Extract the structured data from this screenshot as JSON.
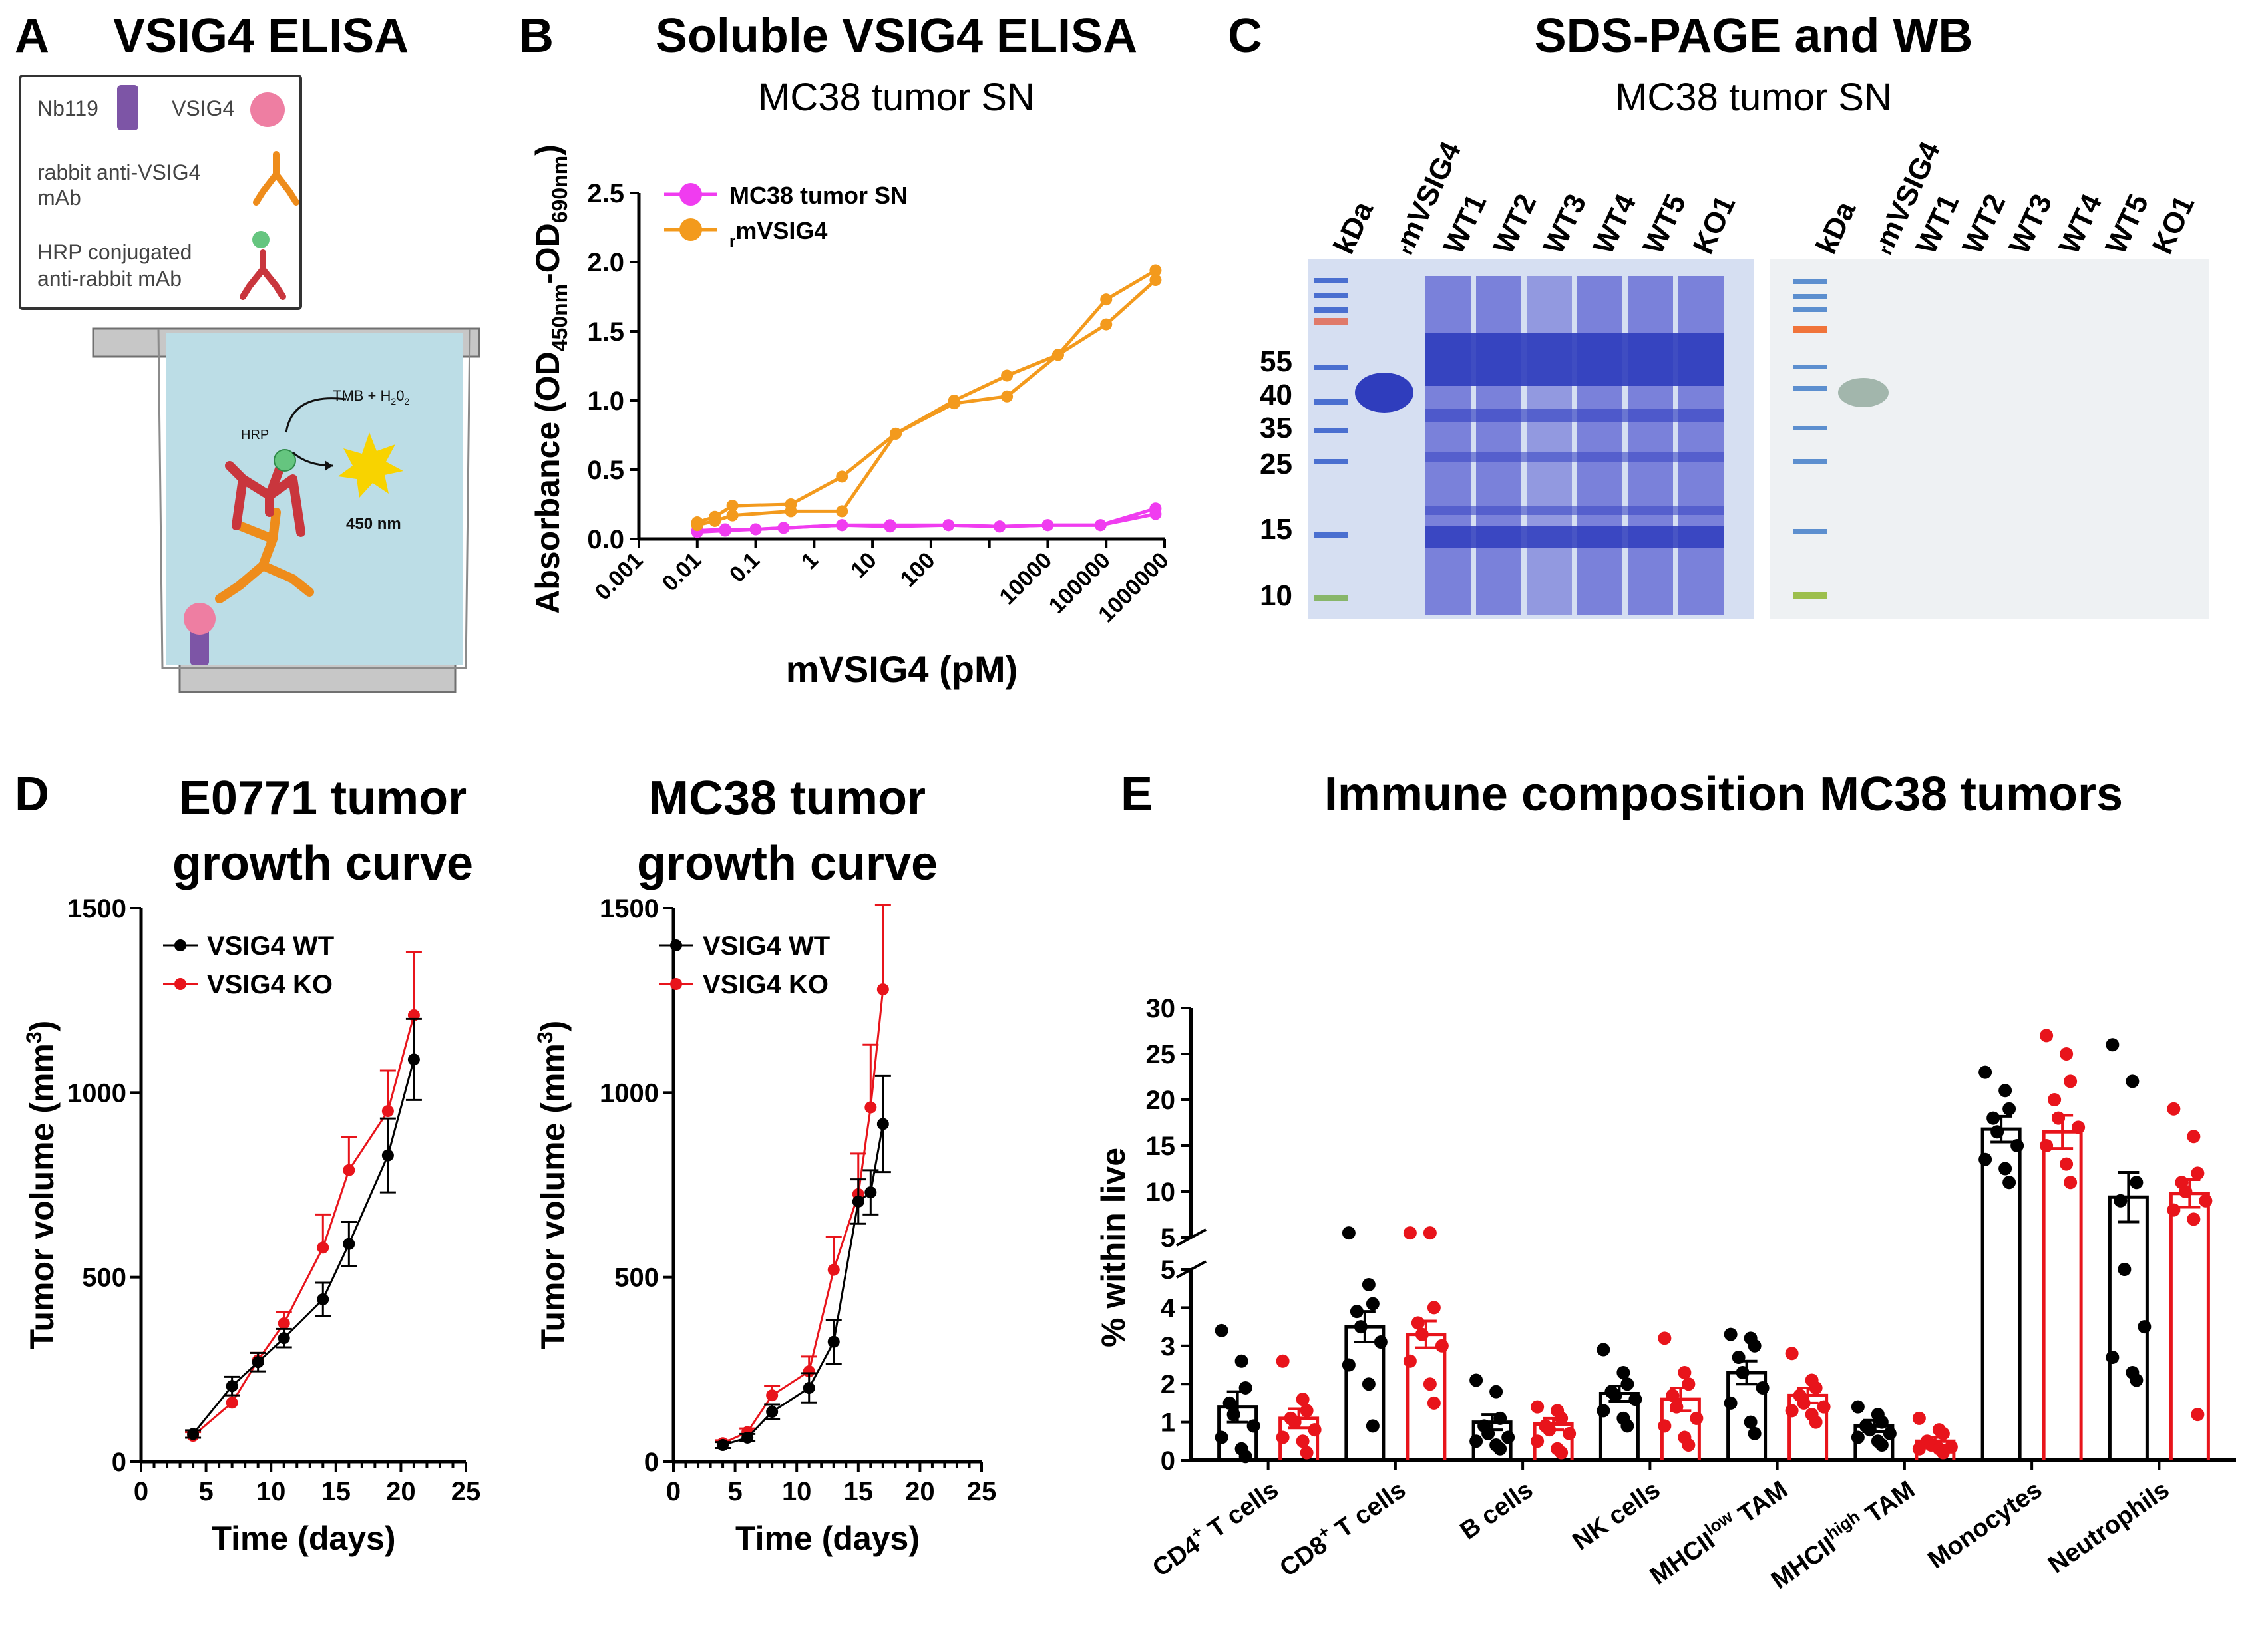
{
  "colors": {
    "black": "#000000",
    "red": "#e8141b",
    "magenta": "#f03cf0",
    "orange": "#f39a1d",
    "well": "#bcdde6",
    "purple": "#7d55a6",
    "antibody_orange": "#ee8c1b",
    "antibody_red": "#c9363d",
    "pink": "#ee7ea2",
    "green": "#65c57f",
    "star": "#f8d300",
    "gel_bg": "#d6dff2",
    "gel_band": "#3c49c4",
    "wb_bg": "#eef1f3"
  },
  "panel_a": {
    "letter": "A",
    "title": "VSIG4 ELISA",
    "legend": {
      "nb119": "Nb119",
      "vsig4": "VSIG4",
      "rabbit_line1": "rabbit anti-VSIG4",
      "rabbit_line2": "mAb",
      "hrp_line1": "HRP conjugated",
      "hrp_line2": "anti-rabbit mAb"
    },
    "reaction": {
      "hrp": "HRP",
      "substrate": "TMB + H",
      "substrate_sub": "2",
      "substrate_tail": "0",
      "substrate_sub2": "2",
      "wavelength": "450 nm"
    }
  },
  "panel_b": {
    "letter": "B",
    "title": "Soluble VSIG4 ELISA",
    "subtitle": "MC38 tumor SN"
  },
  "panel_c": {
    "letter": "C",
    "title": "SDS-PAGE and WB",
    "subtitle": "MC38 tumor SN",
    "kda_label": "kDa",
    "lanes": [
      "mVSIG4",
      "WT1",
      "WT2",
      "WT3",
      "WT4",
      "WT5",
      "KO1"
    ],
    "lane_prefix": "r",
    "markers": [
      "55",
      "40",
      "35",
      "25",
      "15",
      "10"
    ]
  },
  "panel_d": {
    "letter": "D"
  },
  "panel_e": {
    "letter": "E",
    "title": "Immune composition MC38 tumors"
  },
  "chart_data": [
    {
      "id": "elisa",
      "type": "line",
      "title": "Soluble VSIG4 ELISA",
      "xlabel": "mVSIG4 (pM)",
      "ylabel_main": "Absorbance (OD",
      "ylabel_sub1": "450nm",
      "ylabel_mid": "-OD",
      "ylabel_sub2": "690nm",
      "ylabel_end": ")",
      "xscale": "log",
      "xlim": [
        0.001,
        1000000
      ],
      "ylim": [
        0,
        2.5
      ],
      "xticks": [
        "0.001",
        "0.01",
        "0.1",
        "1",
        "10",
        "100",
        "10000",
        "100000",
        "1000000"
      ],
      "xtick_values": [
        0.001,
        0.01,
        0.1,
        1,
        10,
        100,
        1000,
        10000,
        100000,
        1000000
      ],
      "xtick_label_at": [
        0.001,
        0.01,
        0.1,
        1,
        10,
        100,
        10000,
        100000,
        1000000
      ],
      "yticks": [
        "0.0",
        "0.5",
        "1.0",
        "1.5",
        "2.0",
        "2.5"
      ],
      "legend": [
        {
          "name": "MC38 tumor SN",
          "prefix": ""
        },
        {
          "name": "mVSIG4",
          "prefix": "r"
        }
      ],
      "series": [
        {
          "name": "MC38 tumor SN rep1",
          "color_key": "magenta",
          "x": [
            0.01,
            0.03,
            0.1,
            0.3,
            3,
            20,
            200,
            1500,
            10000,
            80000,
            700000
          ],
          "y": [
            0.05,
            0.06,
            0.07,
            0.08,
            0.1,
            0.1,
            0.1,
            0.09,
            0.1,
            0.1,
            0.22
          ]
        },
        {
          "name": "MC38 tumor SN rep2",
          "color_key": "magenta",
          "x": [
            0.01,
            0.03,
            0.1,
            0.3,
            3,
            20,
            200,
            1500,
            10000,
            80000,
            700000
          ],
          "y": [
            0.06,
            0.07,
            0.07,
            0.08,
            0.1,
            0.09,
            0.1,
            0.09,
            0.1,
            0.1,
            0.18
          ]
        },
        {
          "name": "rmVSIG4 rep1",
          "color_key": "orange",
          "x": [
            0.01,
            0.02,
            0.04,
            0.4,
            3,
            25,
            250,
            2000,
            15000,
            100000,
            700000
          ],
          "y": [
            0.12,
            0.16,
            0.24,
            0.25,
            0.45,
            0.76,
            1.0,
            1.18,
            1.33,
            1.73,
            1.94
          ]
        },
        {
          "name": "rmVSIG4 rep2",
          "color_key": "orange",
          "x": [
            0.01,
            0.02,
            0.04,
            0.4,
            3,
            25,
            250,
            2000,
            15000,
            100000,
            700000
          ],
          "y": [
            0.1,
            0.13,
            0.17,
            0.2,
            0.2,
            0.76,
            0.98,
            1.03,
            1.33,
            1.55,
            1.87
          ]
        }
      ]
    },
    {
      "id": "e0771",
      "type": "line",
      "title_line1": "E0771 tumor",
      "title_line2": "growth curve",
      "xlabel": "Time (days)",
      "ylabel": "Tumor volume (mm",
      "ylabel_sup": "3",
      "ylabel_end": ")",
      "xlim": [
        0,
        25
      ],
      "ylim": [
        0,
        1500
      ],
      "xticks": [
        "0",
        "5",
        "10",
        "15",
        "20",
        "25"
      ],
      "yticks": [
        "0",
        "500",
        "1000",
        "1500"
      ],
      "legend": [
        "VSIG4 WT",
        "VSIG4 KO"
      ],
      "series": [
        {
          "name": "VSIG4 WT",
          "color_key": "black",
          "x": [
            4,
            7,
            9,
            11,
            14,
            16,
            19,
            21
          ],
          "y": [
            75,
            205,
            270,
            335,
            440,
            590,
            830,
            1090
          ],
          "err": [
            10,
            25,
            25,
            25,
            45,
            60,
            100,
            110
          ]
        },
        {
          "name": "VSIG4 KO",
          "color_key": "red",
          "x": [
            4,
            7,
            9,
            11,
            14,
            16,
            19,
            21
          ],
          "y": [
            70,
            160,
            275,
            375,
            580,
            790,
            950,
            1210
          ],
          "err": [
            10,
            20,
            20,
            30,
            90,
            90,
            110,
            170
          ]
        }
      ]
    },
    {
      "id": "mc38growth",
      "type": "line",
      "title_line1": "MC38 tumor",
      "title_line2": "growth curve",
      "xlabel": "Time (days)",
      "ylabel": "Tumor volume (mm",
      "ylabel_sup": "3",
      "ylabel_end": ")",
      "xlim": [
        0,
        25
      ],
      "ylim": [
        0,
        1500
      ],
      "xticks": [
        "0",
        "5",
        "10",
        "15",
        "20",
        "25"
      ],
      "yticks": [
        "0",
        "500",
        "1000",
        "1500"
      ],
      "legend": [
        "VSIG4 WT",
        "VSIG4 KO"
      ],
      "series": [
        {
          "name": "VSIG4 WT",
          "color_key": "black",
          "x": [
            4,
            6,
            8,
            11,
            13,
            15,
            16,
            17
          ],
          "y": [
            45,
            65,
            135,
            200,
            325,
            705,
            730,
            915
          ],
          "err": [
            8,
            10,
            20,
            40,
            60,
            60,
            60,
            130
          ]
        },
        {
          "name": "VSIG4 KO",
          "color_key": "red",
          "x": [
            4,
            6,
            8,
            11,
            13,
            15,
            16,
            17
          ],
          "y": [
            50,
            80,
            180,
            245,
            520,
            725,
            960,
            1280
          ],
          "err": [
            8,
            10,
            25,
            40,
            90,
            110,
            170,
            230
          ]
        }
      ]
    },
    {
      "id": "immune",
      "type": "bar",
      "title": "Immune composition MC38 tumors",
      "ylabel": "% within live",
      "yaxis": "broken",
      "ylim_lower": [
        0,
        5
      ],
      "ylim_upper": [
        5,
        30
      ],
      "yticks_lower": [
        "0",
        "1",
        "2",
        "3",
        "4",
        "5"
      ],
      "yticks_upper": [
        "5",
        "10",
        "15",
        "20",
        "25",
        "30"
      ],
      "categories": [
        {
          "main": "CD4",
          "sup": "+",
          "rest": " T cells"
        },
        {
          "main": "CD8",
          "sup": "+",
          "rest": " T cells"
        },
        {
          "main": "B cells",
          "sup": "",
          "rest": ""
        },
        {
          "main": "NK cells",
          "sup": "",
          "rest": ""
        },
        {
          "main": "MHCII",
          "sup": "low",
          "rest": " TAM"
        },
        {
          "main": "MHCII",
          "sup": "high",
          "rest": " TAM"
        },
        {
          "main": "Monocytes",
          "sup": "",
          "rest": ""
        },
        {
          "main": "Neutrophils",
          "sup": "",
          "rest": ""
        }
      ],
      "series": [
        {
          "name": "VSIG4 WT",
          "color_key": "black",
          "values": [
            1.4,
            3.5,
            1.0,
            1.75,
            2.3,
            0.9,
            16.8,
            9.4
          ],
          "sem": [
            0.4,
            0.4,
            0.2,
            0.2,
            0.3,
            0.15,
            1.4,
            2.7
          ],
          "points": [
            [
              3.4,
              2.6,
              1.9,
              1.5,
              1.2,
              0.9,
              0.6,
              0.3,
              0.1
            ],
            [
              5.5,
              4.6,
              4.1,
              3.9,
              3.5,
              3.1,
              2.5,
              2.0,
              0.9
            ],
            [
              2.1,
              1.8,
              1.1,
              0.9,
              0.7,
              0.6,
              0.5,
              0.4,
              0.3
            ],
            [
              2.9,
              2.3,
              2.0,
              1.8,
              1.7,
              1.6,
              1.3,
              1.1,
              0.9
            ],
            [
              3.3,
              3.2,
              3.0,
              2.7,
              2.3,
              1.9,
              1.5,
              1.0,
              0.7
            ],
            [
              1.4,
              1.2,
              1.0,
              0.9,
              0.8,
              0.7,
              0.6,
              0.5,
              0.4
            ],
            [
              23,
              21,
              19,
              18,
              16.5,
              15,
              13.5,
              12.5,
              11
            ],
            [
              26,
              22,
              11,
              9,
              5,
              3.5,
              2.7,
              2.3,
              2.1
            ]
          ]
        },
        {
          "name": "VSIG4 KO",
          "color_key": "red",
          "values": [
            1.1,
            3.3,
            0.95,
            1.6,
            1.7,
            0.5,
            16.5,
            9.8
          ],
          "sem": [
            0.25,
            0.35,
            0.15,
            0.3,
            0.2,
            0.1,
            1.8,
            1.5
          ],
          "points": [
            [
              2.6,
              1.6,
              1.3,
              1.1,
              1.0,
              0.8,
              0.6,
              0.5,
              0.2
            ],
            [
              5.5,
              5.5,
              4.0,
              3.6,
              3.3,
              3.0,
              2.6,
              2.0,
              1.5
            ],
            [
              1.4,
              1.3,
              1.1,
              0.9,
              0.8,
              0.7,
              0.5,
              0.3,
              0.2
            ],
            [
              3.2,
              2.3,
              2.0,
              1.7,
              1.4,
              1.1,
              0.9,
              0.6,
              0.4
            ],
            [
              2.8,
              2.1,
              1.9,
              1.7,
              1.5,
              1.4,
              1.3,
              1.2,
              1.0
            ],
            [
              1.1,
              0.8,
              0.7,
              0.5,
              0.4,
              0.35,
              0.3,
              0.3,
              0.2
            ],
            [
              27,
              25,
              22,
              20,
              18,
              17,
              15,
              13,
              11
            ],
            [
              19,
              16,
              12,
              11,
              10,
              9,
              8,
              7,
              1.2
            ]
          ]
        }
      ]
    }
  ]
}
